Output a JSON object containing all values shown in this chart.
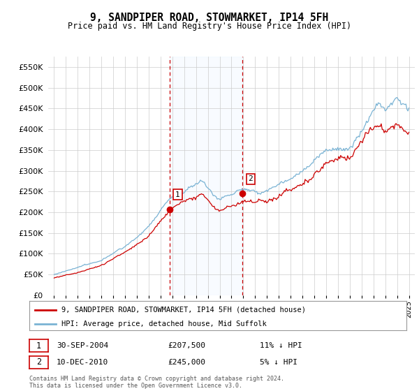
{
  "title": "9, SANDPIPER ROAD, STOWMARKET, IP14 5FH",
  "subtitle": "Price paid vs. HM Land Registry's House Price Index (HPI)",
  "footer": "Contains HM Land Registry data © Crown copyright and database right 2024.\nThis data is licensed under the Open Government Licence v3.0.",
  "legend_line1": "9, SANDPIPER ROAD, STOWMARKET, IP14 5FH (detached house)",
  "legend_line2": "HPI: Average price, detached house, Mid Suffolk",
  "sale1_label": "1",
  "sale1_date": "30-SEP-2004",
  "sale1_price": "£207,500",
  "sale1_hpi": "11% ↓ HPI",
  "sale2_label": "2",
  "sale2_date": "10-DEC-2010",
  "sale2_price": "£245,000",
  "sale2_hpi": "5% ↓ HPI",
  "hpi_color": "#7ab3d4",
  "price_color": "#cc0000",
  "shaded_color": "#ddeeff",
  "grid_color": "#cccccc",
  "background_color": "#ffffff",
  "ylim_min": 0,
  "ylim_max": 575000,
  "yticks": [
    0,
    50000,
    100000,
    150000,
    200000,
    250000,
    300000,
    350000,
    400000,
    450000,
    500000,
    550000
  ],
  "ytick_labels": [
    "£0",
    "£50K",
    "£100K",
    "£150K",
    "£200K",
    "£250K",
    "£300K",
    "£350K",
    "£400K",
    "£450K",
    "£500K",
    "£550K"
  ],
  "sale1_x": 2004.75,
  "sale1_y": 207500,
  "sale2_x": 2010.92,
  "sale2_y": 245000,
  "xmin": 1994.5,
  "xmax": 2025.5
}
